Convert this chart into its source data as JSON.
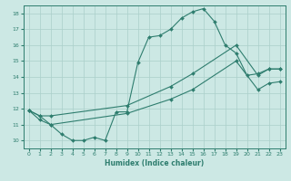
{
  "title": "",
  "xlabel": "Humidex (Indice chaleur)",
  "ylabel": "",
  "xlim": [
    -0.5,
    23.5
  ],
  "ylim": [
    9.5,
    18.5
  ],
  "xticks": [
    0,
    1,
    2,
    3,
    4,
    5,
    6,
    7,
    8,
    9,
    10,
    11,
    12,
    13,
    14,
    15,
    16,
    17,
    18,
    19,
    20,
    21,
    22,
    23
  ],
  "yticks": [
    10,
    11,
    12,
    13,
    14,
    15,
    16,
    17,
    18
  ],
  "bg_color": "#cce8e4",
  "grid_color": "#aacfca",
  "line_color": "#2e7d6e",
  "line1_x": [
    0,
    1,
    2,
    3,
    4,
    5,
    6,
    7,
    8,
    9,
    10,
    11,
    12,
    13,
    14,
    15,
    16,
    17,
    18,
    19,
    20,
    21,
    22,
    23
  ],
  "line1_y": [
    11.9,
    11.55,
    11.0,
    10.4,
    10.0,
    10.0,
    10.2,
    10.0,
    11.8,
    11.8,
    14.9,
    16.5,
    16.6,
    17.0,
    17.7,
    18.1,
    18.3,
    17.5,
    16.0,
    15.5,
    14.1,
    14.2,
    14.5,
    14.5
  ],
  "line2_x": [
    0,
    1,
    2,
    9,
    13,
    15,
    19,
    21,
    22,
    23
  ],
  "line2_y": [
    11.9,
    11.55,
    11.55,
    12.2,
    13.4,
    14.2,
    16.0,
    14.1,
    14.5,
    14.5
  ],
  "line3_x": [
    0,
    1,
    2,
    9,
    13,
    15,
    19,
    21,
    22,
    23
  ],
  "line3_y": [
    11.9,
    11.3,
    11.0,
    11.7,
    12.6,
    13.2,
    15.0,
    13.2,
    13.6,
    13.7
  ],
  "marker": "D",
  "markersize": 2,
  "linewidth": 0.8
}
